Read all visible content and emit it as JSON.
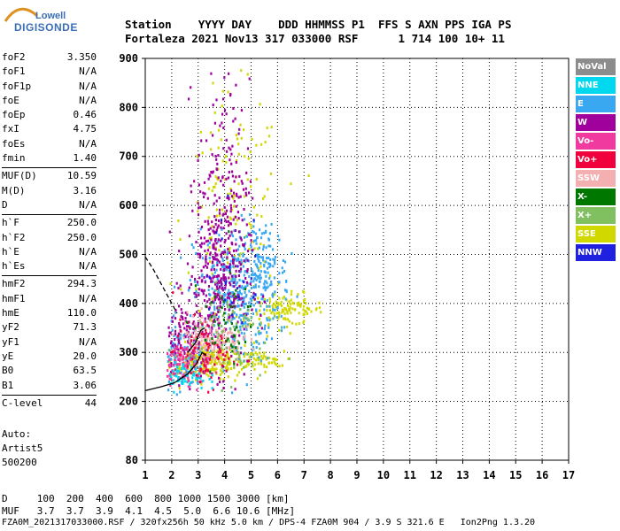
{
  "logo": {
    "line1": "Lowell",
    "line2": "DIGISONDE"
  },
  "header": {
    "labels": "Station    YYYY DAY    DDD HHMMSS P1  FFS S AXN PPS IGA PS",
    "values": "Fortaleza 2021 Nov13 317 033000 RSF      1 714 100 10+ 11"
  },
  "params": {
    "group1": [
      {
        "k": "foF2",
        "v": "3.350"
      },
      {
        "k": "foF1",
        "v": "N/A"
      },
      {
        "k": "foF1p",
        "v": "N/A"
      },
      {
        "k": "foE",
        "v": "N/A"
      },
      {
        "k": "foEp",
        "v": "0.46"
      },
      {
        "k": "fxI",
        "v": "4.75"
      },
      {
        "k": "foEs",
        "v": "N/A"
      },
      {
        "k": "fmin",
        "v": "1.40"
      }
    ],
    "group2": [
      {
        "k": "MUF(D)",
        "v": "10.59"
      },
      {
        "k": "M(D)",
        "v": "3.16"
      },
      {
        "k": "D",
        "v": "N/A"
      }
    ],
    "group3": [
      {
        "k": "h`F",
        "v": "250.0"
      },
      {
        "k": "h`F2",
        "v": "250.0"
      },
      {
        "k": "h`E",
        "v": "N/A"
      },
      {
        "k": "h`Es",
        "v": "N/A"
      }
    ],
    "group4": [
      {
        "k": "hmF2",
        "v": "294.3"
      },
      {
        "k": "hmF1",
        "v": "N/A"
      },
      {
        "k": "hmE",
        "v": "110.0"
      },
      {
        "k": "yF2",
        "v": "71.3"
      },
      {
        "k": "yF1",
        "v": "N/A"
      },
      {
        "k": "yE",
        "v": "20.0"
      },
      {
        "k": "B0",
        "v": "63.5"
      },
      {
        "k": "B1",
        "v": "3.06"
      }
    ],
    "group5": [
      {
        "k": "C-level",
        "v": "44"
      }
    ]
  },
  "auto": {
    "line1": "Auto:",
    "line2": "Artist5",
    "line3": "500200"
  },
  "footer": {
    "d_row": "D     100  200  400  600  800 1000 1500 3000 [km]",
    "muf_row": "MUF   3.7  3.7  3.9  4.1  4.5  5.0  6.6 10.6 [MHz]",
    "file_row": "FZA0M_2021317033000.RSF / 320fx256h 50 kHz 5.0 km / DPS-4 FZA0M 904 / 3.9 S 321.6 E   Ion2Png 1.3.20"
  },
  "legend": [
    {
      "label": "NoVal",
      "color": "#8c8c8c"
    },
    {
      "label": "NNE",
      "color": "#00d8f0"
    },
    {
      "label": "E",
      "color": "#3aa8f0"
    },
    {
      "label": "W",
      "color": "#a0009c"
    },
    {
      "label": "Vo-",
      "color": "#f03aa0"
    },
    {
      "label": "Vo+",
      "color": "#f0003c"
    },
    {
      "label": "SSW",
      "color": "#f4b0b0"
    },
    {
      "label": "X-",
      "color": "#007800"
    },
    {
      "label": "X+",
      "color": "#80c060"
    },
    {
      "label": "SSE",
      "color": "#d0d800"
    },
    {
      "label": "NNW",
      "color": "#2020e0"
    }
  ],
  "chart_data": {
    "type": "scatter",
    "xlim": [
      1,
      17
    ],
    "ylim": [
      80,
      900
    ],
    "x_ticks": [
      1,
      2,
      3,
      4,
      5,
      6,
      7,
      8,
      9,
      10,
      11,
      12,
      13,
      14,
      15,
      16,
      17
    ],
    "y_ticks": [
      80,
      200,
      300,
      400,
      500,
      600,
      700,
      800,
      900
    ],
    "grid": true,
    "legend_position": "right",
    "clusters": [
      {
        "series": "SSE",
        "cx": 3.3,
        "cy": 285,
        "sx": 0.7,
        "sy": 18,
        "n": 260
      },
      {
        "series": "SSE",
        "cx": 6.3,
        "cy": 390,
        "sx": 0.7,
        "sy": 16,
        "n": 120
      },
      {
        "series": "SSE",
        "cx": 4.3,
        "cy": 560,
        "sx": 0.9,
        "sy": 130,
        "n": 160
      },
      {
        "series": "SSE",
        "cx": 5.2,
        "cy": 285,
        "sx": 0.5,
        "sy": 10,
        "n": 60
      },
      {
        "series": "E",
        "cx": 4.4,
        "cy": 420,
        "sx": 0.8,
        "sy": 70,
        "n": 380
      },
      {
        "series": "E",
        "cx": 5.4,
        "cy": 470,
        "sx": 0.5,
        "sy": 50,
        "n": 120
      },
      {
        "series": "E",
        "cx": 2.2,
        "cy": 300,
        "sx": 0.4,
        "sy": 35,
        "n": 90
      },
      {
        "series": "W",
        "cx": 3.7,
        "cy": 440,
        "sx": 0.6,
        "sy": 85,
        "n": 360
      },
      {
        "series": "W",
        "cx": 3.9,
        "cy": 660,
        "sx": 0.5,
        "sy": 100,
        "n": 130
      },
      {
        "series": "W",
        "cx": 2.5,
        "cy": 330,
        "sx": 0.5,
        "sy": 40,
        "n": 110
      },
      {
        "series": "SSW",
        "cx": 3.4,
        "cy": 330,
        "sx": 0.6,
        "sy": 25,
        "n": 170
      },
      {
        "series": "Vo-",
        "cx": 2.4,
        "cy": 275,
        "sx": 0.5,
        "sy": 22,
        "n": 130
      },
      {
        "series": "Vo+",
        "cx": 3.2,
        "cy": 300,
        "sx": 0.6,
        "sy": 35,
        "n": 80
      },
      {
        "series": "X+",
        "cx": 4.1,
        "cy": 340,
        "sx": 0.7,
        "sy": 50,
        "n": 80
      },
      {
        "series": "X-",
        "cx": 3.9,
        "cy": 370,
        "sx": 0.6,
        "sy": 50,
        "n": 45
      },
      {
        "series": "NNE",
        "cx": 2.3,
        "cy": 255,
        "sx": 0.5,
        "sy": 15,
        "n": 80
      },
      {
        "series": "NNW",
        "cx": 4.2,
        "cy": 470,
        "sx": 0.6,
        "sy": 70,
        "n": 25
      }
    ],
    "traces": [
      {
        "name": "profile",
        "style": "solid",
        "x": [
          1.0,
          1.6,
          2.1,
          2.6,
          2.95,
          3.15,
          3.3
        ],
        "y": [
          222,
          230,
          238,
          256,
          278,
          300,
          294
        ]
      },
      {
        "name": "dashed",
        "style": "dashed",
        "x": [
          1.0,
          1.3,
          1.6,
          1.9,
          2.2
        ],
        "y": [
          495,
          470,
          440,
          410,
          380
        ]
      },
      {
        "name": "trace2",
        "style": "solid",
        "x": [
          2.6,
          2.9,
          3.1,
          3.25
        ],
        "y": [
          300,
          320,
          345,
          350
        ]
      }
    ]
  }
}
